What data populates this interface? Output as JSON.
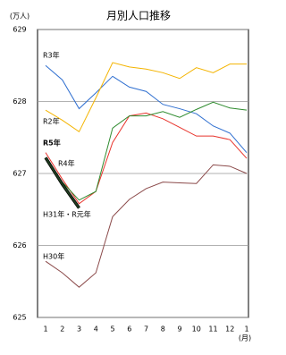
{
  "chart_data": {
    "type": "line",
    "title": "月別人口推移",
    "y_unit": "(万人)",
    "x_unit": "(月)",
    "categories": [
      "1",
      "2",
      "3",
      "4",
      "5",
      "6",
      "7",
      "8",
      "9",
      "10",
      "11",
      "12",
      "1"
    ],
    "ylim": [
      625,
      629
    ],
    "yticks": [
      625,
      626,
      627,
      628,
      629
    ],
    "grid": true,
    "series": [
      {
        "name": "R3年",
        "color": "#2f6fd0",
        "values": [
          628.5,
          628.3,
          627.9,
          628.12,
          628.35,
          628.2,
          628.14,
          627.96,
          627.9,
          627.83,
          627.66,
          627.56,
          627.29
        ]
      },
      {
        "name": "R2年",
        "color": "#f4b400",
        "values": [
          627.88,
          627.74,
          627.58,
          628.05,
          628.54,
          628.48,
          628.45,
          628.4,
          628.32,
          628.47,
          628.4,
          628.52,
          628.52
        ]
      },
      {
        "name": "R4年",
        "color": "#e8342c",
        "values": [
          627.29,
          626.92,
          626.58,
          626.75,
          627.43,
          627.8,
          627.84,
          627.76,
          627.64,
          627.52,
          627.52,
          627.47,
          627.21
        ]
      },
      {
        "name": "H31年・R元年",
        "color": "#2e8b2e",
        "values": [
          627.22,
          626.88,
          626.63,
          626.75,
          627.63,
          627.8,
          627.8,
          627.86,
          627.78,
          627.89,
          627.99,
          627.91,
          627.88
        ]
      },
      {
        "name": "H30年",
        "color": "#8b4a4a",
        "values": [
          625.78,
          625.62,
          625.42,
          625.62,
          626.4,
          626.64,
          626.79,
          626.88,
          626.87,
          626.86,
          627.12,
          627.1,
          627.0
        ]
      },
      {
        "name": "R5年",
        "color": "#1f3d1f",
        "values": [
          627.22,
          626.85,
          626.52,
          null,
          null,
          null,
          null,
          null,
          null,
          null,
          null,
          null,
          null
        ]
      }
    ]
  }
}
